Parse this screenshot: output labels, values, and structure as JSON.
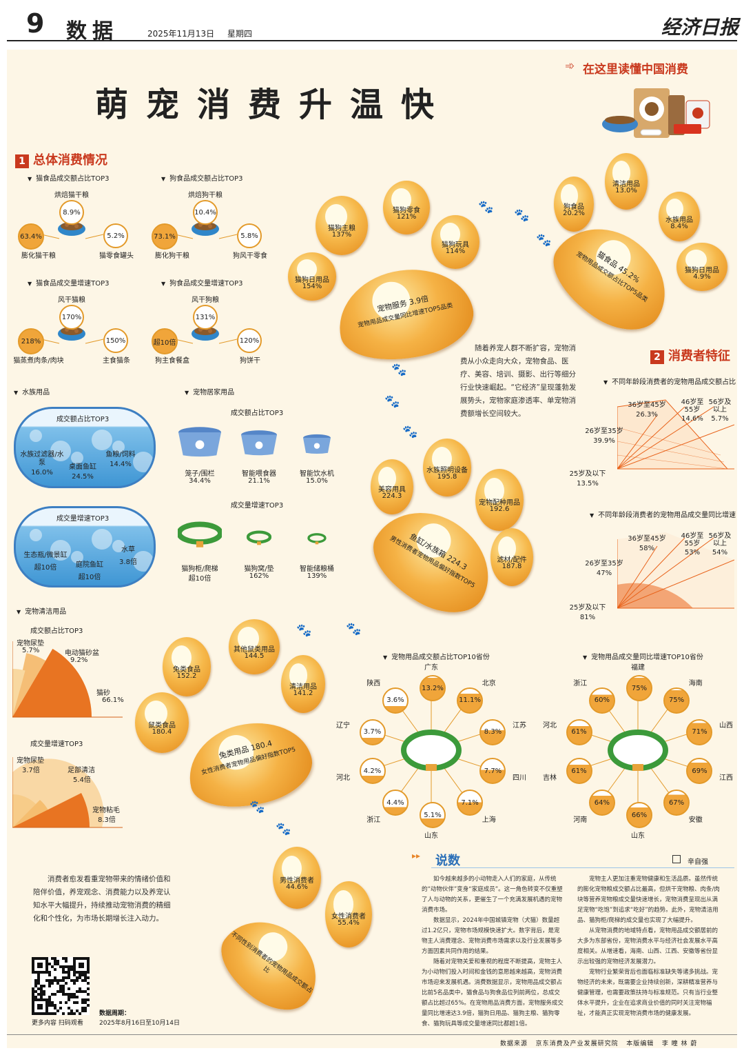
{
  "header": {
    "page_no": "9",
    "section": "数据",
    "date": "2025年11月13日",
    "weekday": "星期四",
    "paper": "经济日报"
  },
  "banner": "在这里读懂中国消费",
  "title": "萌宠消费升温快",
  "sec1": {
    "num": "1",
    "title": "总体消费情况",
    "cat_share": {
      "title": "猫食品成交额占比TOP3",
      "items": [
        {
          "name": "烘焙猫干粮",
          "val": "8.9%"
        },
        {
          "name": "膨化猫干粮",
          "val": "63.4%"
        },
        {
          "name": "猫零食罐头",
          "val": "5.2%"
        }
      ]
    },
    "dog_share": {
      "title": "狗食品成交额占比TOP3",
      "items": [
        {
          "name": "烘焙狗干粮",
          "val": "10.4%"
        },
        {
          "name": "膨化狗干粮",
          "val": "73.1%"
        },
        {
          "name": "狗风干零食",
          "val": "5.8%"
        }
      ]
    },
    "cat_growth": {
      "title": "猫食品成交量增速TOP3",
      "items": [
        {
          "name": "风干猫粮",
          "val": "170%"
        },
        {
          "name": "猫蒸煮肉条/肉块",
          "val": "218%"
        },
        {
          "name": "主食猫条",
          "val": "150%"
        }
      ]
    },
    "dog_growth": {
      "title": "狗食品成交量增速TOP3",
      "items": [
        {
          "name": "风干狗粮",
          "val": "131%"
        },
        {
          "name": "狗主食餐盒",
          "val": "超10倍"
        },
        {
          "name": "狗饼干",
          "val": "120%"
        }
      ]
    },
    "aqua": {
      "title": "水族用品",
      "share_title": "成交额占比TOP3",
      "share": [
        {
          "name": "水族过滤器/水泵",
          "val": "16.0%"
        },
        {
          "name": "桌面鱼缸",
          "val": "24.5%"
        },
        {
          "name": "鱼粮/饲料",
          "val": "14.4%"
        }
      ],
      "growth_title": "成交量增速TOP3",
      "growth": [
        {
          "name": "生态瓶/微景缸",
          "val": "超10倍"
        },
        {
          "name": "庭院鱼缸",
          "val": "超10倍"
        },
        {
          "name": "水草",
          "val": "3.8倍"
        }
      ]
    },
    "home": {
      "title": "宠物居家用品",
      "share_title": "成交额占比TOP3",
      "share": [
        {
          "name": "笼子/围栏",
          "val": "34.4%"
        },
        {
          "name": "智能喂食器",
          "val": "21.1%"
        },
        {
          "name": "智能饮水机",
          "val": "15.0%"
        }
      ],
      "growth_title": "成交量增速TOP3",
      "growth": [
        {
          "name": "猫狗柜/爬梯",
          "val": "超10倍"
        },
        {
          "name": "猫狗窝/垫",
          "val": "162%"
        },
        {
          "name": "智能储粮桶",
          "val": "139%"
        }
      ]
    },
    "clean": {
      "title": "宠物清洁用品",
      "share_title": "成交额占比TOP3",
      "share": [
        {
          "name": "宠物尿垫",
          "val": "5.7%",
          "frac": 0.057
        },
        {
          "name": "电动猫砂盆",
          "val": "9.2%",
          "frac": 0.092
        },
        {
          "name": "猫砂",
          "val": "66.1%",
          "frac": 0.661
        }
      ],
      "growth_title": "成交量增速TOP3",
      "growth": [
        {
          "name": "宠物尿垫",
          "val": "3.7倍"
        },
        {
          "name": "足部清洁",
          "val": "5.4倍"
        },
        {
          "name": "宠物粘毛",
          "val": "8.3倍"
        }
      ]
    }
  },
  "paws": {
    "p1": {
      "pad": "宠物服务 3.9倍",
      "caption": "宠物用品成交量同比增速TOP5品类",
      "toes": [
        {
          "name": "猫狗日用品",
          "val": "154%"
        },
        {
          "name": "猫狗主粮",
          "val": "137%"
        },
        {
          "name": "猫狗零食",
          "val": "121%"
        },
        {
          "name": "猫狗玩具",
          "val": "114%"
        }
      ]
    },
    "p2": {
      "pad": "猫食品 45.2%",
      "caption": "宠物用品成交额占比TOP5品类",
      "toes": [
        {
          "name": "狗食品",
          "val": "20.2%"
        },
        {
          "name": "清洁用品",
          "val": "13.0%"
        },
        {
          "name": "水族用品",
          "val": "8.4%"
        },
        {
          "name": "猫狗日用品",
          "val": "4.9%"
        }
      ]
    },
    "p3": {
      "pad": "鱼缸/水族箱 224.3",
      "caption": "男性消费者宠物用品偏好指数TOP5",
      "toes": [
        {
          "name": "美容用具",
          "val": "224.3"
        },
        {
          "name": "水族照明设备",
          "val": "195.8"
        },
        {
          "name": "宠物配种用品",
          "val": "192.6"
        },
        {
          "name": "滤材/配件",
          "val": "187.8"
        }
      ]
    },
    "p4": {
      "pad": "兔类用品 180.4",
      "caption": "女性消费者宠物用品偏好指数TOP5",
      "toes": [
        {
          "name": "鼠类食品",
          "val": "180.4"
        },
        {
          "name": "兔类食品",
          "val": "152.2"
        },
        {
          "name": "其他鼠类用品",
          "val": "144.5"
        },
        {
          "name": "清洁用品",
          "val": "141.2"
        }
      ]
    },
    "p5": {
      "caption": "不同性别消费者的宠物用品成交额占比",
      "toes": [
        {
          "name": "男性消费者",
          "val": "44.6%"
        },
        {
          "name": "女性消费者",
          "val": "55.4%"
        }
      ]
    }
  },
  "intro": "随着养宠人群不断扩容，宠物消费从小众走向大众，宠物食品、医疗、美容、培训、摄影、出行等细分行业快速崛起。“它经济”呈现蓬勃发展势头，宠物家庭渗透率、单宠物消费额增长空间较大。",
  "sec2": {
    "num": "2",
    "title": "消费者特征",
    "age_share": {
      "title": "不同年龄段消费者的宠物用品成交额占比",
      "items": [
        {
          "name": "25岁及以下",
          "val": "13.5%"
        },
        {
          "name": "26岁至35岁",
          "val": "39.9%"
        },
        {
          "name": "36岁至45岁",
          "val": "26.3%"
        },
        {
          "name": "46岁至55岁",
          "val": "14.6%"
        },
        {
          "name": "56岁及以上",
          "val": "5.7%"
        }
      ]
    },
    "age_growth": {
      "title": "不同年龄段消费者的宠物用品成交量同比增速",
      "items": [
        {
          "name": "25岁及以下",
          "val": "81%"
        },
        {
          "name": "26岁至35岁",
          "val": "47%"
        },
        {
          "name": "36岁至45岁",
          "val": "58%"
        },
        {
          "name": "46岁至55岁",
          "val": "53%"
        },
        {
          "name": "56岁及以上",
          "val": "54%"
        }
      ]
    },
    "prov_share": {
      "title": "宠物用品成交额占比TOP10省份",
      "items": [
        {
          "name": "广东",
          "val": "13.2%"
        },
        {
          "name": "北京",
          "val": "11.1%"
        },
        {
          "name": "江苏",
          "val": "8.3%"
        },
        {
          "name": "四川",
          "val": "7.7%"
        },
        {
          "name": "上海",
          "val": "7.1%"
        },
        {
          "name": "山东",
          "val": "5.1%"
        },
        {
          "name": "浙江",
          "val": "4.4%"
        },
        {
          "name": "河北",
          "val": "4.2%"
        },
        {
          "name": "辽宁",
          "val": "3.7%"
        },
        {
          "name": "陕西",
          "val": "3.6%"
        }
      ]
    },
    "prov_growth": {
      "title": "宠物用品成交量同比增速TOP10省份",
      "items": [
        {
          "name": "福建",
          "val": "75%"
        },
        {
          "name": "海南",
          "val": "75%"
        },
        {
          "name": "山西",
          "val": "71%"
        },
        {
          "name": "江西",
          "val": "69%"
        },
        {
          "name": "安徽",
          "val": "67%"
        },
        {
          "name": "山东",
          "val": "66%"
        },
        {
          "name": "河南",
          "val": "64%"
        },
        {
          "name": "吉林",
          "val": "61%"
        },
        {
          "name": "河北",
          "val": "61%"
        },
        {
          "name": "浙江",
          "val": "60%"
        }
      ]
    }
  },
  "bottom_text": "消费者愈发看重宠物带来的情绪价值和陪伴价值，养宠观念、消费能力以及养宠认知水平大幅提升，持续推动宠物消费的精细化和个性化，为市场长期增长注入动力。",
  "qr_caption": "更多内容 扫码观看",
  "period_label": "数据周期：",
  "period": "2025年8月16日至10月14日",
  "shuoshu": {
    "title": "说数",
    "author": "辛自强",
    "p1": "如今越来越多的小动物走入人们的家庭，从传统的“动物伙伴”变身“家庭成员”。这一角色转变不仅重塑了人与动物的关系，更催生了一个充满发展机遇的宠物消费市场。",
    "p2": "数据显示，2024年中国城镇宠物（犬猫）数量超过1.2亿只，宠物市场规模快速扩大。数字背后，是宠物主人消费理念、宠物消费市场需求以及行业发展等多方面因素共同作用的结果。",
    "p3": "随着对宠物关爱和重视的程度不断提高，宠物主人为小动物们投入时间和金钱的意愿越来越高，宠物消费市场迎来发展机遇。消费数据显示，宠物用品成交额占比前5名品类中，猫食品与狗食品位列前两位，总成交额占比超过65%。在宠物用品消费方面，宠物服务成交量同比增速达3.9倍，猫狗日用品、猫狗主粮、猫狗零食、猫狗玩具等成交量增速同比都超1倍。",
    "p4": "宠物主人更加注重宠物健康和生活品质。虽然传统的膨化宠物粮成交额占比最高，但烘干宠物粮、肉条/肉块等营养宠物粮成交量快速增长，宠物消费呈现出从满足宠物“吃饱”到追求“吃好”的趋势。此外，宠物清洁用品、猫狗柜/爬梯的成交量也实现了大幅提升。",
    "p5": "从宠物消费的地域特点看，宠物用品成交额居前的大多为东部省份，宠物消费水平与经济社会发展水平高度相关。从增速看，海南、山西、江西、安徽等省份显示出较强的宠物经济发展潜力。",
    "p6": "宠物行业繁荣背后也面临标准缺失等诸多挑战。宠物经济的未来，既需要企业持续创新，深耕精准营养与健康管理，也需要政策扶持与标准规范。只有当行业整体水平提升，企业在追求商业价值的同时关注宠物福祉，才能真正实现宠物消费市场的健康发展。"
  },
  "footer": {
    "source_label": "数据来源",
    "source": "京东消费及产业发展研究院",
    "editor_label": "本版编辑",
    "editor": "李 瞳 林 蔚"
  }
}
